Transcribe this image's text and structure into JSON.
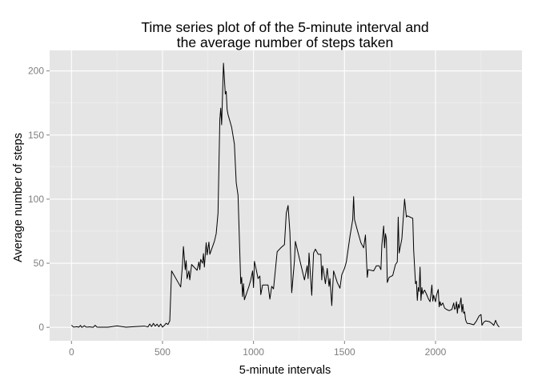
{
  "chart_data": {
    "type": "line",
    "title_lines": [
      "Time series plot of of the 5-minute interval and",
      "the average number of steps taken"
    ],
    "xlabel": "5-minute intervals",
    "ylabel": "Average number of steps",
    "xlim": [
      -120,
      2475
    ],
    "ylim": [
      -10.5,
      216
    ],
    "x_ticks": [
      0,
      500,
      1000,
      1500,
      2000
    ],
    "x_tick_labels": [
      "0",
      "500",
      "1000",
      "1500",
      "2000"
    ],
    "y_ticks": [
      0,
      50,
      100,
      150,
      200
    ],
    "y_tick_labels": [
      "0",
      "50",
      "100",
      "150",
      "200"
    ],
    "grid": true,
    "panel_background": "#e5e5e5",
    "grid_color": "#ffffff",
    "line_color": "#000000",
    "series": [
      {
        "points": [
          [
            0,
            1.7
          ],
          [
            10,
            0.3
          ],
          [
            20,
            0.3
          ],
          [
            30,
            0.5
          ],
          [
            40,
            0.1
          ],
          [
            50,
            1.5
          ],
          [
            55,
            0.1
          ],
          [
            60,
            0.1
          ],
          [
            70,
            1.3
          ],
          [
            80,
            0.3
          ],
          [
            90,
            0.2
          ],
          [
            100,
            0.4
          ],
          [
            110,
            0.1
          ],
          [
            120,
            0.1
          ],
          [
            130,
            1.6
          ],
          [
            140,
            0.2
          ],
          [
            150,
            0.1
          ],
          [
            200,
            0.1
          ],
          [
            250,
            1.1
          ],
          [
            300,
            0.1
          ],
          [
            350,
            0.6
          ],
          [
            400,
            1.0
          ],
          [
            420,
            0.3
          ],
          [
            430,
            2.6
          ],
          [
            440,
            0.6
          ],
          [
            450,
            3.1
          ],
          [
            460,
            0.9
          ],
          [
            470,
            2.5
          ],
          [
            480,
            0.4
          ],
          [
            490,
            2.6
          ],
          [
            500,
            0.2
          ],
          [
            510,
            1.5
          ],
          [
            520,
            3.2
          ],
          [
            530,
            2.2
          ],
          [
            540,
            5.0
          ],
          [
            550,
            44.0
          ],
          [
            600,
            31.5
          ],
          [
            610,
            49.0
          ],
          [
            615,
            63.0
          ],
          [
            625,
            45.0
          ],
          [
            630,
            52.0
          ],
          [
            635,
            38.0
          ],
          [
            645,
            44.0
          ],
          [
            650,
            37.0
          ],
          [
            660,
            49.0
          ],
          [
            690,
            44.5
          ],
          [
            700,
            51.0
          ],
          [
            705,
            45.0
          ],
          [
            710,
            53.0
          ],
          [
            720,
            50.0
          ],
          [
            725,
            57.5
          ],
          [
            730,
            47.0
          ],
          [
            740,
            66.0
          ],
          [
            745,
            56.5
          ],
          [
            755,
            66.5
          ],
          [
            760,
            57.0
          ],
          [
            785,
            67.0
          ],
          [
            795,
            73.0
          ],
          [
            805,
            89.0
          ],
          [
            815,
            162.0
          ],
          [
            820,
            171.0
          ],
          [
            825,
            158.0
          ],
          [
            835,
            206.0
          ],
          [
            840,
            194.0
          ],
          [
            845,
            182.0
          ],
          [
            850,
            184.0
          ],
          [
            855,
            170.0
          ],
          [
            860,
            166.0
          ],
          [
            880,
            156.0
          ],
          [
            895,
            143.0
          ],
          [
            905,
            113.0
          ],
          [
            915,
            103.0
          ],
          [
            930,
            34.0
          ],
          [
            935,
            39.0
          ],
          [
            940,
            24.0
          ],
          [
            945,
            34.0
          ],
          [
            950,
            21.5
          ],
          [
            975,
            32.0
          ],
          [
            985,
            37.0
          ],
          [
            995,
            44.0
          ],
          [
            1000,
            31.0
          ],
          [
            1005,
            51.5
          ],
          [
            1015,
            45.0
          ],
          [
            1025,
            38.0
          ],
          [
            1035,
            40.0
          ],
          [
            1040,
            25.5
          ],
          [
            1050,
            33.0
          ],
          [
            1080,
            33.0
          ],
          [
            1090,
            22.0
          ],
          [
            1100,
            32.0
          ],
          [
            1110,
            30.0
          ],
          [
            1130,
            59.0
          ],
          [
            1150,
            62.0
          ],
          [
            1170,
            64.5
          ],
          [
            1180,
            89.0
          ],
          [
            1190,
            95.0
          ],
          [
            1200,
            74.0
          ],
          [
            1210,
            27.0
          ],
          [
            1225,
            52.0
          ],
          [
            1230,
            67.0
          ],
          [
            1260,
            49.0
          ],
          [
            1280,
            37.0
          ],
          [
            1295,
            48.0
          ],
          [
            1300,
            38.0
          ],
          [
            1305,
            58.0
          ],
          [
            1320,
            25.0
          ],
          [
            1330,
            58.0
          ],
          [
            1340,
            61.0
          ],
          [
            1355,
            57.0
          ],
          [
            1370,
            57.0
          ],
          [
            1375,
            37.0
          ],
          [
            1380,
            48.0
          ],
          [
            1385,
            44.0
          ],
          [
            1395,
            34.0
          ],
          [
            1405,
            46.0
          ],
          [
            1410,
            39.0
          ],
          [
            1415,
            32.0
          ],
          [
            1420,
            38.0
          ],
          [
            1430,
            17.0
          ],
          [
            1440,
            44.0
          ],
          [
            1460,
            35.0
          ],
          [
            1475,
            30.5
          ],
          [
            1485,
            41.0
          ],
          [
            1500,
            46.0
          ],
          [
            1510,
            51.0
          ],
          [
            1530,
            71.0
          ],
          [
            1545,
            84.0
          ],
          [
            1550,
            102.0
          ],
          [
            1555,
            84.0
          ],
          [
            1570,
            76.0
          ],
          [
            1590,
            66.0
          ],
          [
            1605,
            62.0
          ],
          [
            1615,
            72.0
          ],
          [
            1620,
            55.0
          ],
          [
            1625,
            39.0
          ],
          [
            1630,
            45.0
          ],
          [
            1660,
            44.0
          ],
          [
            1675,
            48.0
          ],
          [
            1690,
            48.0
          ],
          [
            1700,
            45.0
          ],
          [
            1705,
            64.0
          ],
          [
            1715,
            79.0
          ],
          [
            1720,
            62.0
          ],
          [
            1725,
            73.0
          ],
          [
            1730,
            69.0
          ],
          [
            1735,
            35.0
          ],
          [
            1745,
            39.0
          ],
          [
            1765,
            40.5
          ],
          [
            1780,
            49.0
          ],
          [
            1790,
            51.0
          ],
          [
            1795,
            86.0
          ],
          [
            1800,
            58.0
          ],
          [
            1815,
            69.0
          ],
          [
            1830,
            100.0
          ],
          [
            1840,
            86.0
          ],
          [
            1845,
            87.0
          ],
          [
            1875,
            85.0
          ],
          [
            1880,
            60.0
          ],
          [
            1890,
            34.0
          ],
          [
            1895,
            36.0
          ],
          [
            1900,
            21.0
          ],
          [
            1905,
            31.0
          ],
          [
            1910,
            28.0
          ],
          [
            1915,
            47.0
          ],
          [
            1920,
            21.0
          ],
          [
            1925,
            31.0
          ],
          [
            1930,
            26.0
          ],
          [
            1935,
            28.0
          ],
          [
            1940,
            29.0
          ],
          [
            1950,
            26.0
          ],
          [
            1960,
            22.5
          ],
          [
            1970,
            20.0
          ],
          [
            1980,
            33.0
          ],
          [
            1985,
            20.5
          ],
          [
            1990,
            25.0
          ],
          [
            2000,
            20.0
          ],
          [
            2005,
            25.0
          ],
          [
            2015,
            29.5
          ],
          [
            2020,
            16.0
          ],
          [
            2025,
            20.0
          ],
          [
            2030,
            17.0
          ],
          [
            2040,
            19.0
          ],
          [
            2050,
            15.0
          ],
          [
            2060,
            14.0
          ],
          [
            2075,
            13.0
          ],
          [
            2090,
            14.0
          ],
          [
            2100,
            19.0
          ],
          [
            2105,
            14.0
          ],
          [
            2110,
            15.0
          ],
          [
            2115,
            20.0
          ],
          [
            2120,
            11.0
          ],
          [
            2125,
            18.0
          ],
          [
            2130,
            15.0
          ],
          [
            2140,
            23.0
          ],
          [
            2145,
            12.0
          ],
          [
            2150,
            18.0
          ],
          [
            2155,
            11.0
          ],
          [
            2160,
            12.0
          ],
          [
            2165,
            6.0
          ],
          [
            2170,
            4.0
          ],
          [
            2175,
            3.0
          ],
          [
            2185,
            3.0
          ],
          [
            2210,
            2.0
          ],
          [
            2225,
            5.0
          ],
          [
            2240,
            9.0
          ],
          [
            2250,
            10.0
          ],
          [
            2255,
            1.6
          ],
          [
            2265,
            4.0
          ],
          [
            2275,
            5.0
          ],
          [
            2295,
            4.5
          ],
          [
            2310,
            3.0
          ],
          [
            2320,
            1.5
          ],
          [
            2330,
            5.5
          ],
          [
            2335,
            3.5
          ],
          [
            2340,
            2.0
          ],
          [
            2345,
            1.0
          ],
          [
            2350,
            0.2
          ]
        ]
      }
    ]
  }
}
